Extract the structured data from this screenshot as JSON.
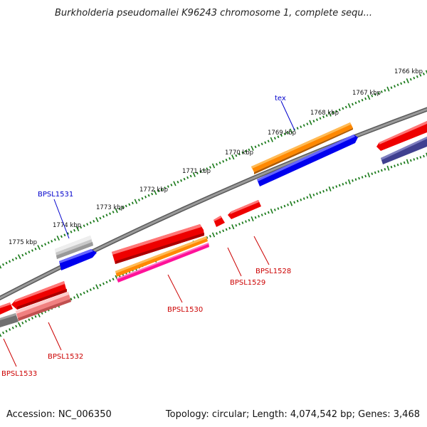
{
  "title": "Burkholderia pseudomallei K96243 chromosome 1, complete sequ...",
  "footer": {
    "accession": "Accession: NC_006350",
    "stats": "Topology: circular; Length: 4,074,542 bp; Genes: 3,468"
  },
  "colors": {
    "backbone": "#808080",
    "tick": "#1a7a1a",
    "gene_label_red": "#cc0000",
    "gene_label_blue": "#0000cc",
    "red": "#ee0000",
    "blue": "#0000ee",
    "orange": "#ff8800",
    "magenta": "#ff1199",
    "gray": "#c8c8c8",
    "pink": "#f08080",
    "dark_gray": "#707070",
    "navy": "#404090"
  },
  "scale_labels": [
    "1766 kbp",
    "1767 kbp",
    "1768 kbp",
    "1769 kbp",
    "1770 kbp",
    "1771 kbp",
    "1772 kbp",
    "1773 kbp",
    "1774 kbp",
    "1775 kbp"
  ],
  "gene_labels": [
    {
      "id": "tex",
      "text": "tex",
      "color": "blue"
    },
    {
      "id": "BPSL1531",
      "text": "BPSL1531",
      "color": "blue"
    },
    {
      "id": "BPSL1528",
      "text": "BPSL1528",
      "color": "red"
    },
    {
      "id": "BPSL1529",
      "text": "BPSL1529",
      "color": "red"
    },
    {
      "id": "BPSL1530",
      "text": "BPSL1530",
      "color": "red"
    },
    {
      "id": "BPSL1532",
      "text": "BPSL1532",
      "color": "red"
    },
    {
      "id": "BPSL1533",
      "text": "BPSL1533",
      "color": "red"
    }
  ]
}
